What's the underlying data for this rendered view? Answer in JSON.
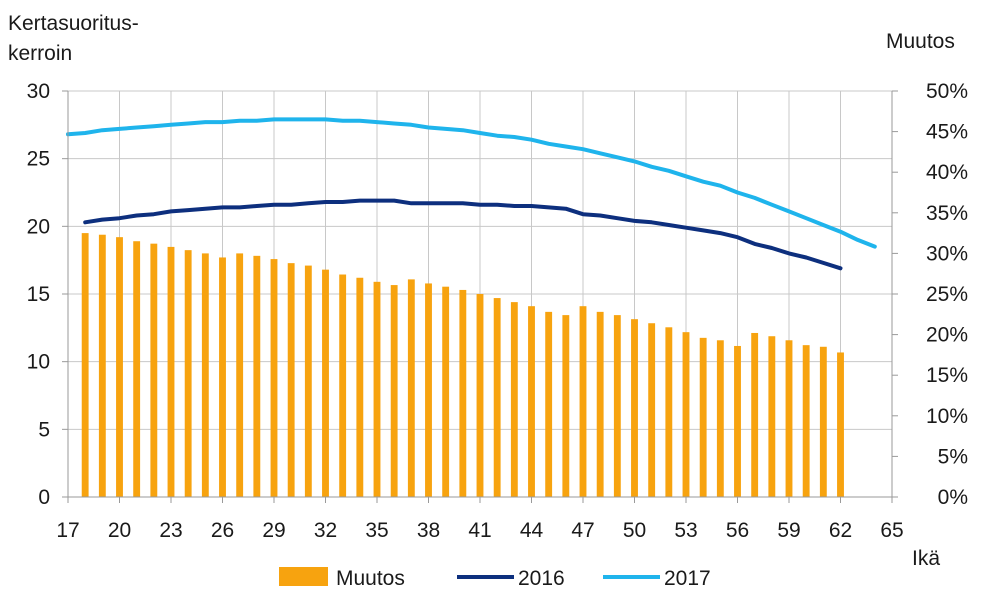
{
  "chart_data": {
    "type": "bar",
    "y_left_label": [
      "Kertasuoritus-",
      "kerroin"
    ],
    "y_right_label": "Muutos",
    "x_label": "Ikä",
    "x_ticks": [
      17,
      20,
      23,
      26,
      29,
      32,
      35,
      38,
      41,
      44,
      47,
      50,
      53,
      56,
      59,
      62,
      65
    ],
    "x_range": [
      17,
      65
    ],
    "y_left_ticks": [
      0,
      5,
      10,
      15,
      20,
      25,
      30
    ],
    "y_left_range": [
      0,
      30
    ],
    "y_right_ticks": [
      "0%",
      "5%",
      "10%",
      "15%",
      "20%",
      "25%",
      "30%",
      "35%",
      "40%",
      "45%",
      "50%"
    ],
    "y_right_range": [
      0,
      50
    ],
    "grid": true,
    "legend_position": "bottom",
    "bar_series": {
      "name": "Muutos",
      "axis": "right",
      "unit": "%",
      "color": "#f7a30f",
      "x": [
        18,
        19,
        20,
        21,
        22,
        23,
        24,
        25,
        26,
        27,
        28,
        29,
        30,
        31,
        32,
        33,
        34,
        35,
        36,
        37,
        38,
        39,
        40,
        41,
        42,
        43,
        44,
        45,
        46,
        47,
        48,
        49,
        50,
        51,
        52,
        53,
        54,
        55,
        56,
        57,
        58,
        59,
        60,
        61,
        62
      ],
      "values": [
        32.5,
        32.3,
        32.0,
        31.5,
        31.2,
        30.8,
        30.4,
        30.0,
        29.5,
        30.0,
        29.7,
        29.3,
        28.8,
        28.5,
        28.0,
        27.4,
        27.0,
        26.5,
        26.1,
        26.8,
        26.3,
        25.9,
        25.5,
        25.0,
        24.5,
        24.0,
        23.5,
        22.8,
        22.4,
        23.5,
        22.8,
        22.4,
        21.9,
        21.4,
        20.9,
        20.3,
        19.6,
        19.3,
        18.6,
        20.2,
        19.8,
        19.3,
        18.7,
        18.5,
        17.8
      ]
    },
    "line_series": [
      {
        "name": "2016",
        "axis": "left",
        "color": "#0d2f7e",
        "x": [
          18,
          19,
          20,
          21,
          22,
          23,
          24,
          25,
          26,
          27,
          28,
          29,
          30,
          31,
          32,
          33,
          34,
          35,
          36,
          37,
          38,
          39,
          40,
          41,
          42,
          43,
          44,
          45,
          46,
          47,
          48,
          49,
          50,
          51,
          52,
          53,
          54,
          55,
          56,
          57,
          58,
          59,
          60,
          61,
          62
        ],
        "values": [
          20.3,
          20.5,
          20.6,
          20.8,
          20.9,
          21.1,
          21.2,
          21.3,
          21.4,
          21.4,
          21.5,
          21.6,
          21.6,
          21.7,
          21.8,
          21.8,
          21.9,
          21.9,
          21.9,
          21.7,
          21.7,
          21.7,
          21.7,
          21.6,
          21.6,
          21.5,
          21.5,
          21.4,
          21.3,
          20.9,
          20.8,
          20.6,
          20.4,
          20.3,
          20.1,
          19.9,
          19.7,
          19.5,
          19.2,
          18.7,
          18.4,
          18.0,
          17.7,
          17.3,
          16.9
        ]
      },
      {
        "name": "2017",
        "axis": "left",
        "color": "#1fb4ec",
        "x": [
          17,
          18,
          19,
          20,
          21,
          22,
          23,
          24,
          25,
          26,
          27,
          28,
          29,
          30,
          31,
          32,
          33,
          34,
          35,
          36,
          37,
          38,
          39,
          40,
          41,
          42,
          43,
          44,
          45,
          46,
          47,
          48,
          49,
          50,
          51,
          52,
          53,
          54,
          55,
          56,
          57,
          58,
          59,
          60,
          61,
          62,
          63,
          64
        ],
        "values": [
          26.8,
          26.9,
          27.1,
          27.2,
          27.3,
          27.4,
          27.5,
          27.6,
          27.7,
          27.7,
          27.8,
          27.8,
          27.9,
          27.9,
          27.9,
          27.9,
          27.8,
          27.8,
          27.7,
          27.6,
          27.5,
          27.3,
          27.2,
          27.1,
          26.9,
          26.7,
          26.6,
          26.4,
          26.1,
          25.9,
          25.7,
          25.4,
          25.1,
          24.8,
          24.4,
          24.1,
          23.7,
          23.3,
          23.0,
          22.5,
          22.1,
          21.6,
          21.1,
          20.6,
          20.1,
          19.6,
          19.0,
          18.5
        ]
      }
    ],
    "legend": [
      "Muutos",
      "2016",
      "2017"
    ]
  }
}
